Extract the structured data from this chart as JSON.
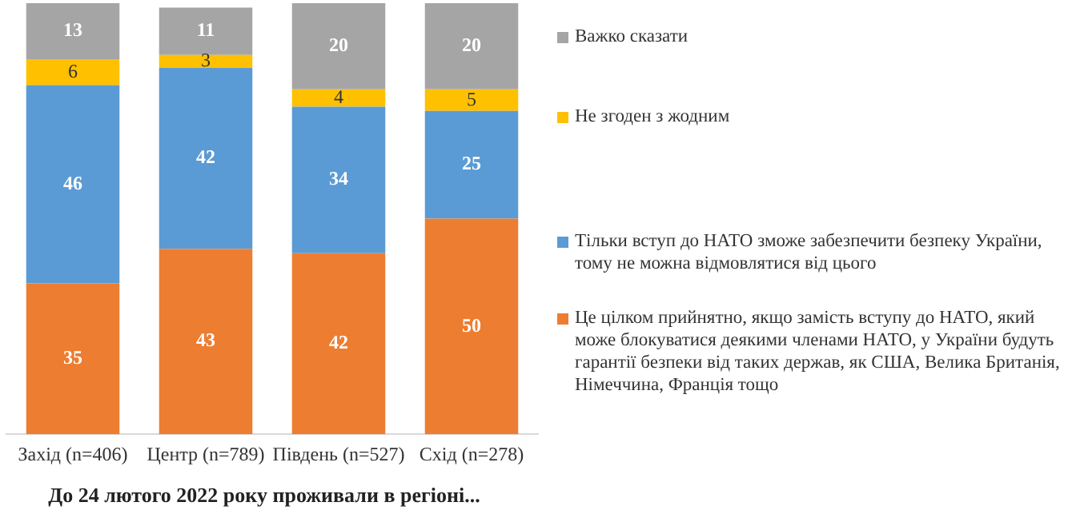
{
  "chart_data": {
    "type": "bar",
    "stacked": true,
    "xlabel": "До 24 лютого 2022 року проживали в регіоні...",
    "categories": [
      "Захід (n=406)",
      "Центр (n=789)",
      "Південь (n=527)",
      "Схід (n=278)"
    ],
    "series": [
      {
        "name": "Це цілком прийнятно, якщо замість вступу до НАТО, який може блокуватися деякими членами НАТО, у України будуть гарантії безпеки від таких держав, як США, Велика Британія, Німеччина, Франція тощо",
        "color": "#ed7d31",
        "values": [
          35,
          43,
          42,
          50
        ]
      },
      {
        "name": "Тільки вступ до НАТО зможе забезпечити безпеку України, тому не можна відмовлятися від цього",
        "color": "#5b9bd5",
        "values": [
          46,
          42,
          34,
          25
        ]
      },
      {
        "name": "Не згоден з жодним",
        "color": "#ffc000",
        "values": [
          6,
          3,
          4,
          5
        ]
      },
      {
        "name": "Важко сказати",
        "color": "#a5a5a5",
        "values": [
          13,
          11,
          20,
          20
        ]
      }
    ],
    "ylim": [
      0,
      100
    ],
    "tick_labels": "x",
    "data_labels": true,
    "legend": "right",
    "grid": false
  }
}
